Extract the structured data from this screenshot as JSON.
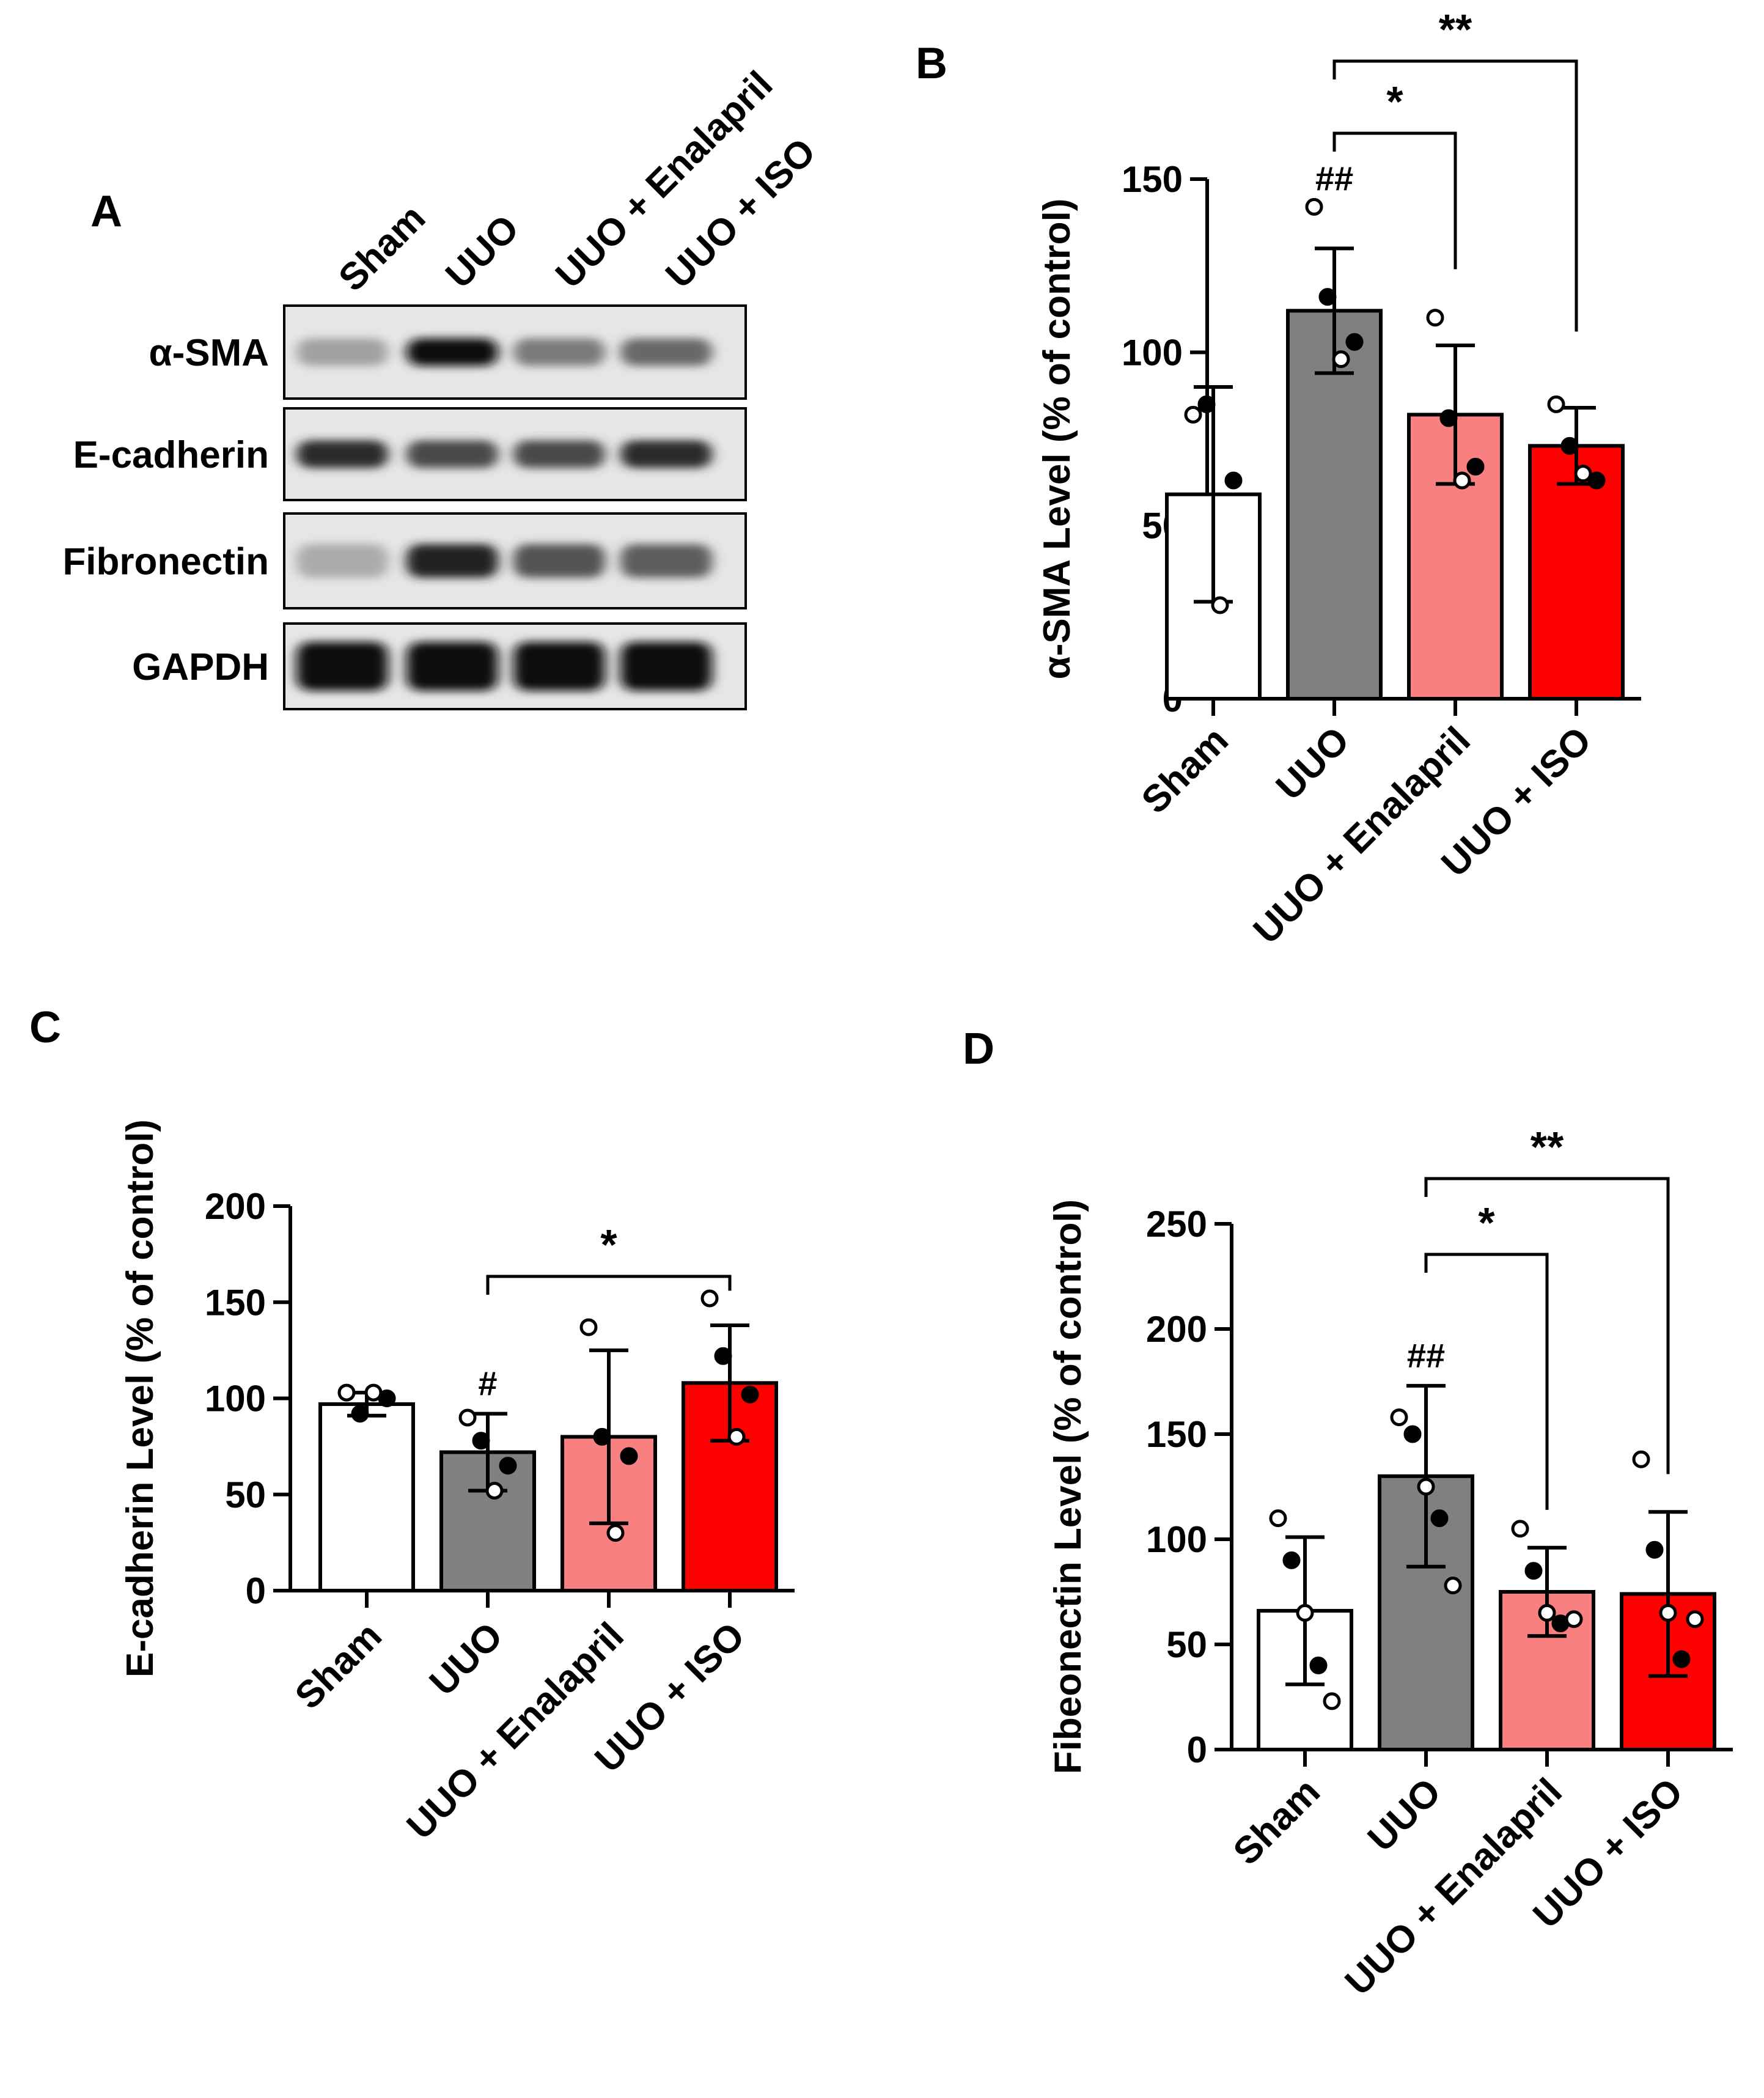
{
  "colors": {
    "Sham": "#ffffff",
    "UUO": "#808080",
    "UUO + Enalapril": "#f98080",
    "UUO + ISO": "#fe0000"
  },
  "western_blot": {
    "panel": "A",
    "lanes": [
      "Sham",
      "UUO",
      "UUO + Enalapril",
      "UUO + ISO"
    ],
    "rows": [
      {
        "label": "α-SMA",
        "intensity": [
          0.25,
          1.0,
          0.45,
          0.55
        ]
      },
      {
        "label": "E-cadherin",
        "intensity": [
          0.85,
          0.7,
          0.7,
          0.85
        ]
      },
      {
        "label": "Fibronectin",
        "intensity": [
          0.2,
          0.9,
          0.65,
          0.6
        ]
      },
      {
        "label": "GAPDH",
        "intensity": [
          1.0,
          1.0,
          1.0,
          1.0
        ]
      }
    ]
  },
  "chart_data": [
    {
      "panel": "B",
      "type": "bar",
      "categories": [
        "Sham",
        "UUO",
        "UUO + Enalapril",
        "UUO + ISO"
      ],
      "values": [
        59,
        112,
        82,
        73
      ],
      "error": [
        31,
        18,
        20,
        11
      ],
      "points": [
        [
          82,
          85,
          27,
          63
        ],
        [
          142,
          116,
          98,
          103
        ],
        [
          110,
          81,
          63,
          67
        ],
        [
          85,
          73,
          65,
          63
        ]
      ],
      "ylabel": "α-SMA Level (% of control)",
      "ylim": [
        0,
        150
      ],
      "yticks": [
        0,
        50,
        100,
        150
      ],
      "hash": [
        "",
        "##",
        "",
        ""
      ],
      "brackets": [
        {
          "from": 1,
          "to": 2,
          "label": "*"
        },
        {
          "from": 1,
          "to": 3,
          "label": "**"
        }
      ]
    },
    {
      "panel": "C",
      "type": "bar",
      "categories": [
        "Sham",
        "UUO",
        "UUO + Enalapril",
        "UUO + ISO"
      ],
      "values": [
        97,
        72,
        80,
        108
      ],
      "error": [
        6,
        20,
        45,
        30
      ],
      "points": [
        [
          103,
          92,
          103,
          100
        ],
        [
          90,
          78,
          52,
          65
        ],
        [
          137,
          80,
          30,
          70
        ],
        [
          152,
          122,
          80,
          102
        ]
      ],
      "ylabel": "E-cadherin Level (% of control)",
      "ylim": [
        0,
        200
      ],
      "yticks": [
        0,
        50,
        100,
        150,
        200
      ],
      "hash": [
        "",
        "#",
        "",
        ""
      ],
      "brackets": [
        {
          "from": 1,
          "to": 3,
          "label": "*"
        }
      ]
    },
    {
      "panel": "D",
      "type": "bar",
      "categories": [
        "Sham",
        "UUO",
        "UUO + Enalapril",
        "UUO + ISO"
      ],
      "values": [
        66,
        130,
        75,
        74
      ],
      "error": [
        35,
        43,
        21,
        39
      ],
      "points": [
        [
          110,
          90,
          65,
          40,
          23
        ],
        [
          158,
          150,
          125,
          110,
          78
        ],
        [
          105,
          85,
          65,
          60,
          62
        ],
        [
          138,
          95,
          65,
          43,
          62
        ]
      ],
      "ylabel": "Fibeonectin Level (% of control)",
      "ylim": [
        0,
        250
      ],
      "yticks": [
        0,
        50,
        100,
        150,
        200,
        250
      ],
      "hash": [
        "",
        "##",
        "",
        ""
      ],
      "brackets": [
        {
          "from": 1,
          "to": 2,
          "label": "*"
        },
        {
          "from": 1,
          "to": 3,
          "label": "**"
        }
      ]
    }
  ]
}
